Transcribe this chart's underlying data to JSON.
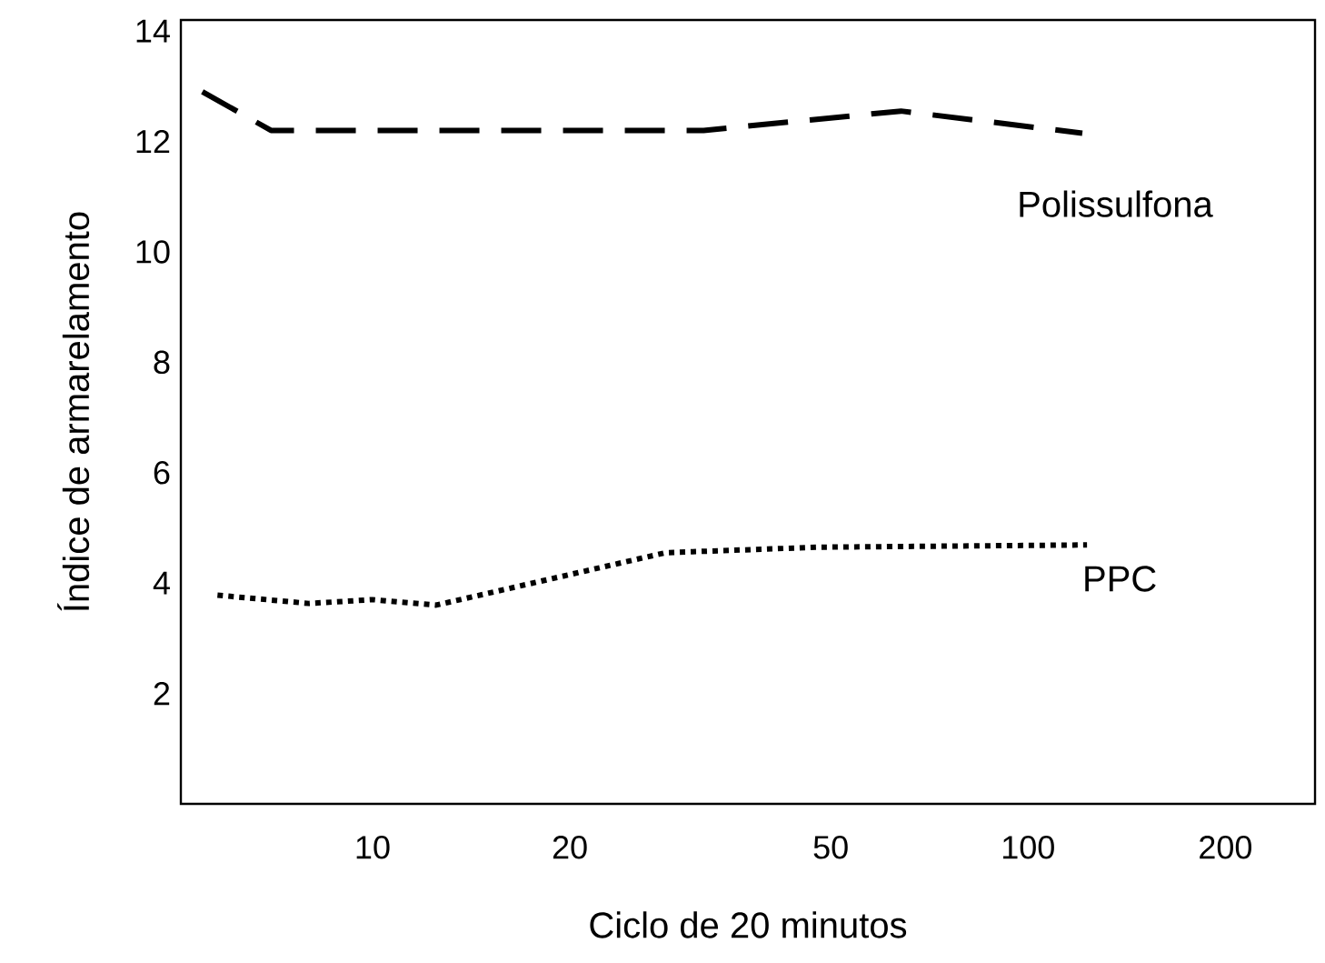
{
  "chart_data": {
    "type": "line",
    "xlabel": "Ciclo de 20 minutos",
    "ylabel": "Índice de armarelamento",
    "log": "x",
    "xlim": [
      5.1,
      274
    ],
    "ylim": [
      0,
      14.2
    ],
    "xticks": [
      10,
      20,
      50,
      100,
      200
    ],
    "yticks": [
      2,
      4,
      6,
      8,
      10,
      12,
      14
    ],
    "series": [
      {
        "name": "Polissulfona",
        "color": "#000000",
        "line_style": "dashed",
        "x": [
          5.5,
          7.0,
          32,
          64,
          121
        ],
        "values": [
          12.9,
          12.2,
          12.2,
          12.55,
          12.15
        ]
      },
      {
        "name": "PPC",
        "color": "#000000",
        "line_style": "dotted",
        "x": [
          5.8,
          8.0,
          10,
          12.5,
          28,
          48,
          123
        ],
        "values": [
          3.78,
          3.63,
          3.7,
          3.6,
          4.55,
          4.65,
          4.69
        ]
      }
    ]
  }
}
